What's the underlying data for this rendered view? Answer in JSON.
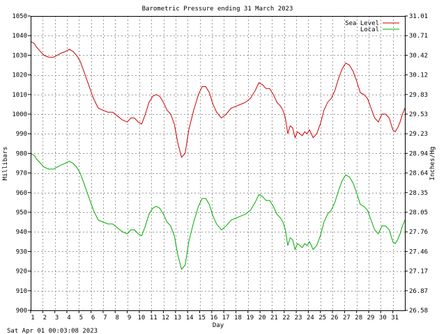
{
  "chart_data": {
    "type": "line",
    "title": "Barometric Pressure ending 31 March 2023",
    "xlabel": "Day",
    "ylabel": "Millibars",
    "y2label": "Inches/Hg",
    "timestamp": "Sat Apr 01 00:03:08 2023",
    "xlim": [
      1,
      32
    ],
    "ylim": [
      900,
      1050
    ],
    "x_ticks": [
      "1",
      "2",
      "3",
      "4",
      "5",
      "6",
      "7",
      "8",
      "9",
      "10",
      "11",
      "12",
      "13",
      "14",
      "15",
      "16",
      "17",
      "18",
      "19",
      "20",
      "21",
      "22",
      "23",
      "24",
      "25",
      "26",
      "27",
      "28",
      "29",
      "30",
      "31"
    ],
    "y_ticks": [
      900,
      910,
      920,
      930,
      940,
      950,
      960,
      970,
      980,
      990,
      1000,
      1010,
      1020,
      1030,
      1040,
      1050
    ],
    "y2_ticks": [
      "26.58",
      "26.87",
      "27.17",
      "27.46",
      "27.76",
      "28.05",
      "28.35",
      "28.64",
      "28.94",
      "29.23",
      "29.53",
      "29.83",
      "30.12",
      "30.42",
      "30.71",
      "31.01"
    ],
    "grid": true,
    "legend_position": "top-right",
    "series": [
      {
        "name": "Sea Level",
        "color": "#cc0000",
        "x": [
          1,
          1.3,
          1.5,
          1.8,
          2.1,
          2.5,
          2.9,
          3.2,
          3.5,
          3.9,
          4.2,
          4.5,
          4.8,
          5.1,
          5.4,
          5.8,
          6.2,
          6.6,
          7,
          7.4,
          7.8,
          8.2,
          8.6,
          9,
          9.3,
          9.6,
          9.9,
          10.2,
          10.5,
          10.8,
          11.1,
          11.4,
          11.7,
          12,
          12.3,
          12.6,
          12.9,
          13.2,
          13.5,
          13.8,
          14.1,
          14.5,
          14.9,
          15.2,
          15.5,
          15.8,
          16.1,
          16.4,
          16.8,
          17.2,
          17.6,
          18,
          18.4,
          18.8,
          19.2,
          19.6,
          19.9,
          20.2,
          20.5,
          20.8,
          21.1,
          21.4,
          21.7,
          21.9,
          22.1,
          22.3,
          22.5,
          22.7,
          22.9,
          23.1,
          23.3,
          23.5,
          23.7,
          23.9,
          24.1,
          24.4,
          24.7,
          25,
          25.3,
          25.6,
          25.9,
          26.2,
          26.5,
          26.8,
          27.1,
          27.4,
          27.7,
          28,
          28.3,
          28.6,
          28.9,
          29.2,
          29.5,
          29.8,
          30.1,
          30.4,
          30.7,
          31,
          31.2,
          31.4,
          31.6,
          31.8,
          32
        ],
        "values": [
          1037,
          1036,
          1034,
          1032,
          1030,
          1029,
          1029,
          1030,
          1031,
          1032,
          1033,
          1032,
          1030,
          1027,
          1022,
          1015,
          1008,
          1003,
          1002,
          1001,
          1001,
          999,
          997,
          996,
          998,
          998,
          996,
          995,
          1000,
          1006,
          1009,
          1010,
          1009,
          1006,
          1002,
          1000,
          995,
          985,
          978,
          980,
          992,
          1002,
          1010,
          1014,
          1014,
          1011,
          1005,
          1001,
          998,
          1000,
          1003,
          1004,
          1005,
          1006,
          1008,
          1012,
          1016,
          1015,
          1013,
          1013,
          1010,
          1006,
          1004,
          1002,
          998,
          990,
          994,
          993,
          988,
          991,
          990,
          989,
          991,
          990,
          992,
          988,
          990,
          995,
          1002,
          1006,
          1008,
          1012,
          1018,
          1023,
          1026,
          1025,
          1022,
          1017,
          1011,
          1010,
          1008,
          1003,
          998,
          996,
          1000,
          1000,
          998,
          992,
          991,
          993,
          996,
          1000,
          1003
        ]
      },
      {
        "name": "Local",
        "color": "#00aa00",
        "x": [
          1,
          1.3,
          1.5,
          1.8,
          2.1,
          2.5,
          2.9,
          3.2,
          3.5,
          3.9,
          4.2,
          4.5,
          4.8,
          5.1,
          5.4,
          5.8,
          6.2,
          6.6,
          7,
          7.4,
          7.8,
          8.2,
          8.6,
          9,
          9.3,
          9.6,
          9.9,
          10.2,
          10.5,
          10.8,
          11.1,
          11.4,
          11.7,
          12,
          12.3,
          12.6,
          12.9,
          13.2,
          13.5,
          13.8,
          14.1,
          14.5,
          14.9,
          15.2,
          15.5,
          15.8,
          16.1,
          16.4,
          16.8,
          17.2,
          17.6,
          18,
          18.4,
          18.8,
          19.2,
          19.6,
          19.9,
          20.2,
          20.5,
          20.8,
          21.1,
          21.4,
          21.7,
          21.9,
          22.1,
          22.3,
          22.5,
          22.7,
          22.9,
          23.1,
          23.3,
          23.5,
          23.7,
          23.9,
          24.1,
          24.4,
          24.7,
          25,
          25.3,
          25.6,
          25.9,
          26.2,
          26.5,
          26.8,
          27.1,
          27.4,
          27.7,
          28,
          28.3,
          28.6,
          28.9,
          29.2,
          29.5,
          29.8,
          30.1,
          30.4,
          30.7,
          31,
          31.2,
          31.4,
          31.6,
          31.8,
          32
        ],
        "values": [
          980,
          979,
          977,
          975,
          973,
          972,
          972,
          973,
          974,
          975,
          976,
          975,
          973,
          970,
          965,
          958,
          951,
          946,
          945,
          944,
          944,
          942,
          940,
          939,
          941,
          941,
          939,
          938,
          943,
          949,
          952,
          953,
          952,
          949,
          945,
          943,
          938,
          928,
          921,
          923,
          935,
          945,
          953,
          957,
          957,
          954,
          948,
          944,
          941,
          943,
          946,
          947,
          948,
          949,
          951,
          955,
          959,
          958,
          956,
          956,
          953,
          949,
          947,
          945,
          941,
          933,
          937,
          936,
          931,
          934,
          933,
          932,
          934,
          933,
          935,
          931,
          933,
          938,
          945,
          949,
          951,
          955,
          961,
          966,
          969,
          968,
          965,
          960,
          954,
          953,
          951,
          946,
          941,
          939,
          943,
          943,
          941,
          935,
          934,
          936,
          939,
          943,
          946
        ]
      }
    ]
  }
}
